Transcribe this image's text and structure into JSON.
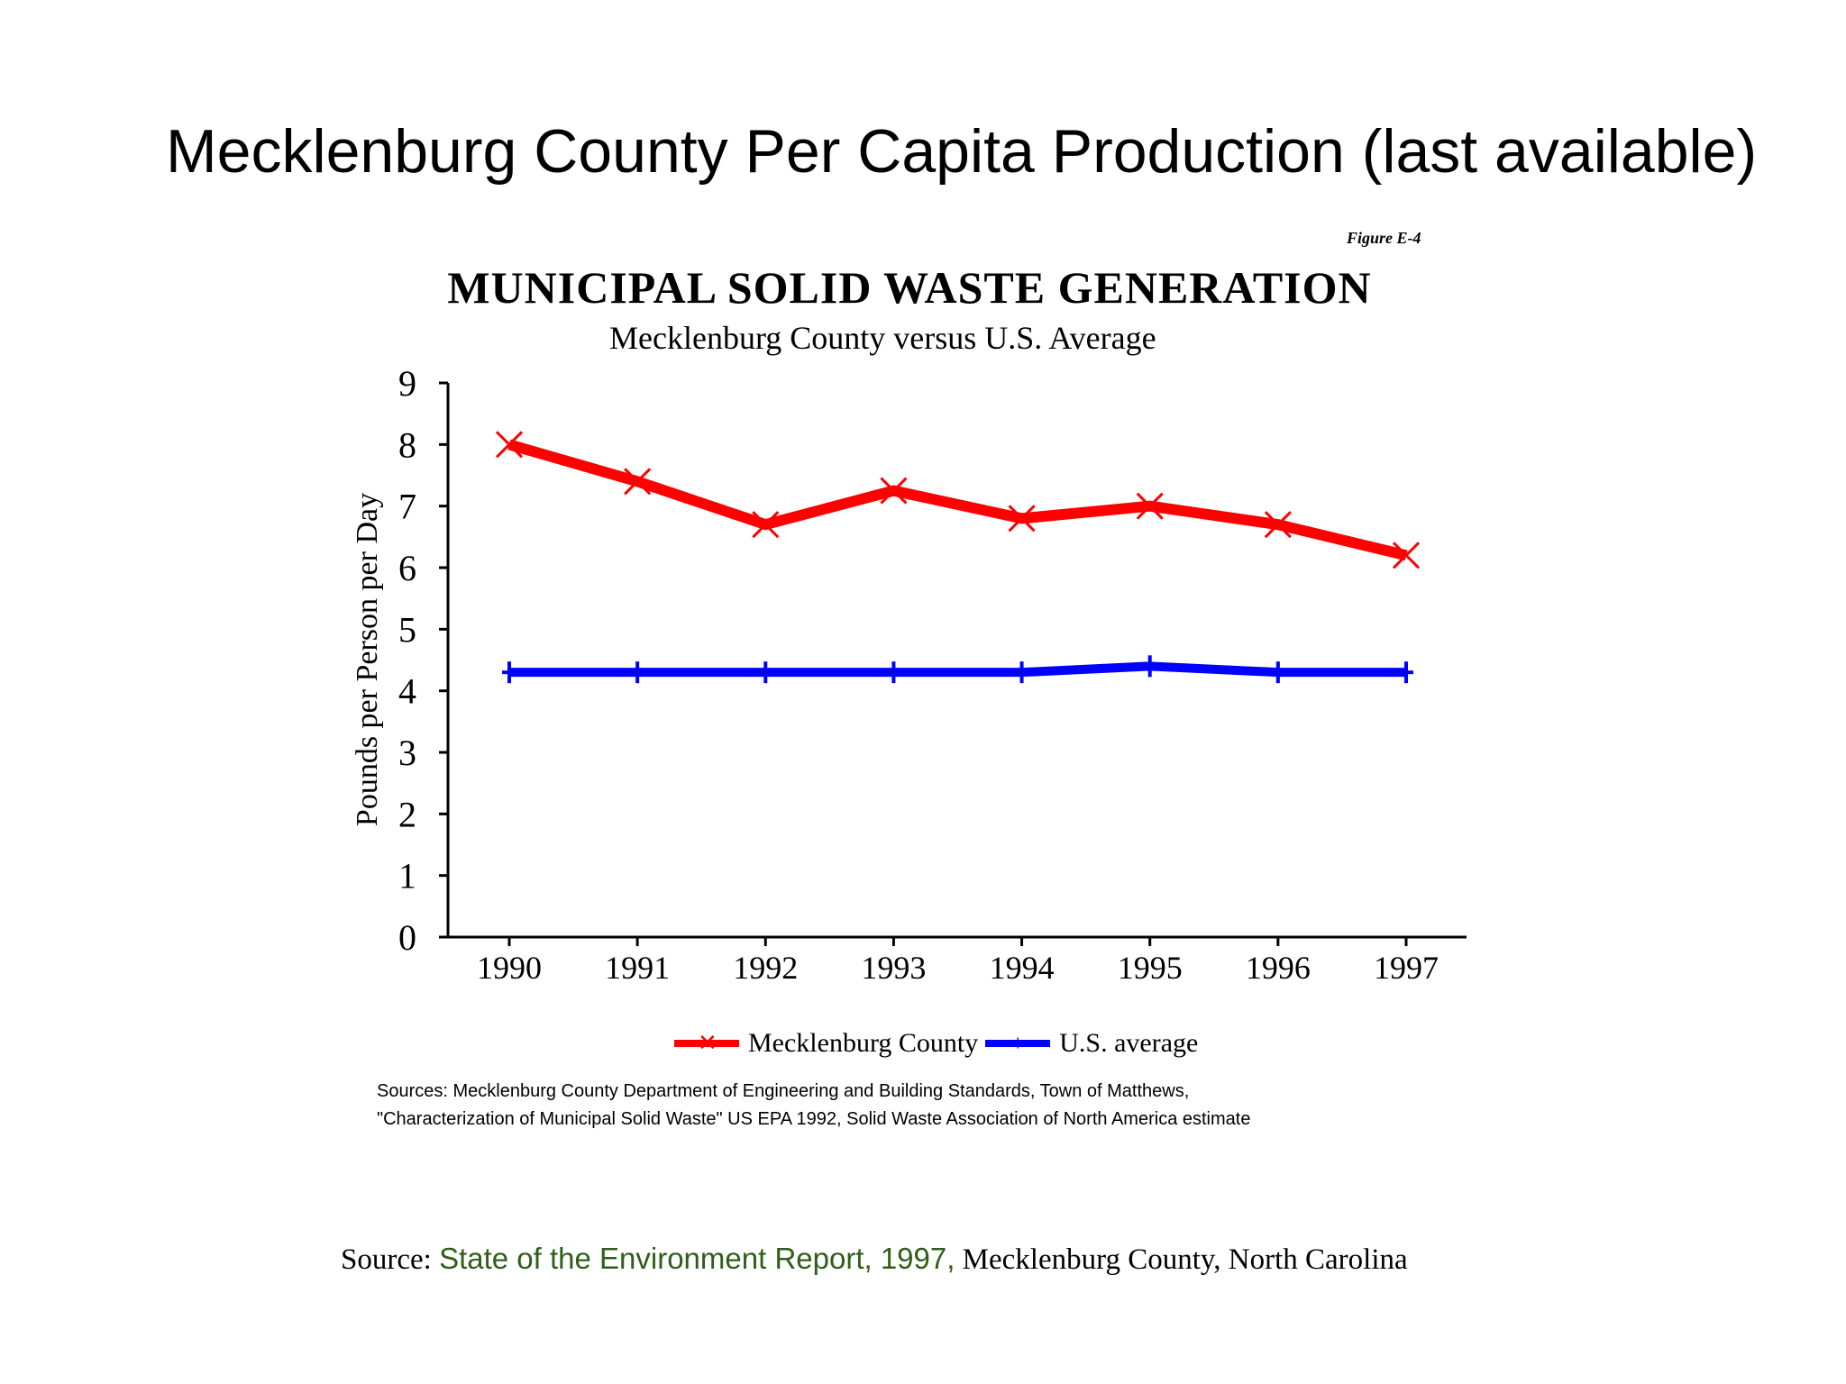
{
  "slide": {
    "title": "Mecklenburg County Per Capita Production (last available)",
    "source_prefix": "Source: ",
    "source_link": "State of the Environment Report, 1997,",
    "source_suffix": " Mecklenburg County, North Carolina",
    "link_color": "#2f5e1a"
  },
  "figure": {
    "tag": "Figure E-4",
    "source_line1": "Sources: Mecklenburg County Department of Engineering and Building Standards, Town of Matthews,",
    "source_line2": "\"Characterization of Municipal Solid Waste\" US EPA 1992, Solid Waste Association of North America estimate"
  },
  "chart_data": {
    "type": "line",
    "title": "MUNICIPAL SOLID WASTE GENERATION",
    "subtitle": "Mecklenburg County versus U.S. Average",
    "xlabel": "",
    "ylabel": "Pounds per Person per Day",
    "categories": [
      "1990",
      "1991",
      "1992",
      "1993",
      "1994",
      "1995",
      "1996",
      "1997"
    ],
    "ylim": [
      0,
      9
    ],
    "yticks": [
      0,
      1,
      2,
      3,
      4,
      5,
      6,
      7,
      8,
      9
    ],
    "grid": false,
    "legend_position": "bottom",
    "series": [
      {
        "name": "Mecklenburg County",
        "color": "#ff0000",
        "marker": "x",
        "values": [
          8.0,
          7.4,
          6.7,
          7.25,
          6.8,
          7.0,
          6.7,
          6.2
        ]
      },
      {
        "name": "U.S. average",
        "color": "#0000ff",
        "marker": "+",
        "values": [
          4.3,
          4.3,
          4.3,
          4.3,
          4.3,
          4.4,
          4.3,
          4.3
        ]
      }
    ]
  }
}
